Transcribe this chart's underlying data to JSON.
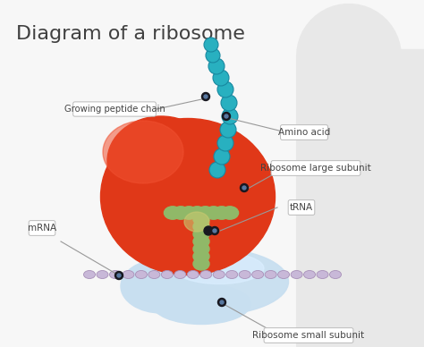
{
  "title": "Diagram of a ribosome",
  "title_fontsize": 16,
  "background_color": "#f7f7f7",
  "right_panel_color": "#e8e8e8",
  "labels": {
    "growing_peptide": "Growing peptide chain",
    "amino_acid": "Amino acid",
    "large_subunit": "Ribosome large subunit",
    "trna": "tRNA",
    "mrna": "mRNA",
    "small_subunit": "Ribosome small subunit"
  },
  "colors": {
    "large_subunit_base": "#e03818",
    "large_subunit_highlight": "#f05030",
    "small_subunit_base": "#c8dff0",
    "small_subunit_highlight": "#daeeff",
    "small_subunit_shadow": "#a0c0d8",
    "trna_green": "#90b868",
    "trna_dark": "#708848",
    "trna_yellow": "#c8c870",
    "mrna_bead": "#c8b8d8",
    "mrna_bead_outline": "#a890b8",
    "peptide_bead": "#28b0c0",
    "peptide_bead_outline": "#1888a0",
    "dot_color": "#181820",
    "label_box_bg": "#ffffff",
    "label_box_edge": "#bbbbbb",
    "label_text": "#444444",
    "line_color": "#999999"
  }
}
